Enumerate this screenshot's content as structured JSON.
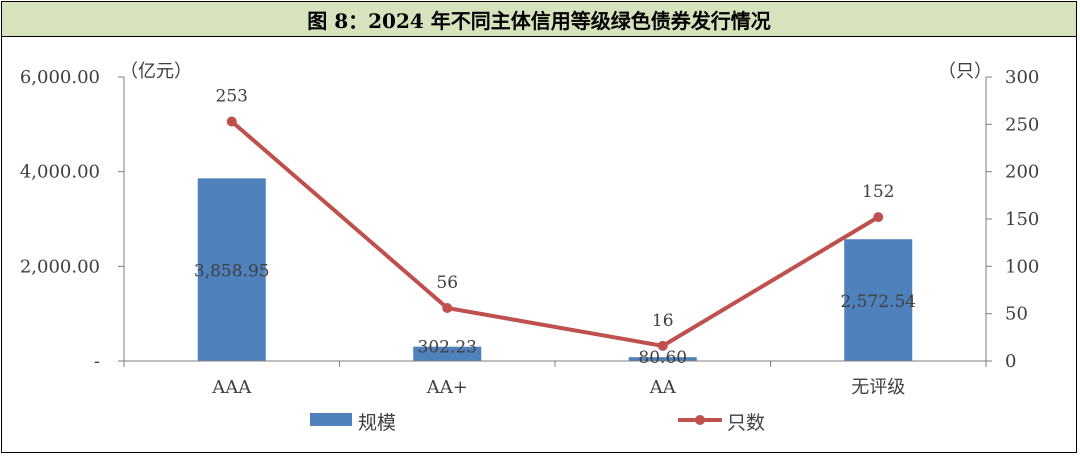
{
  "title": "图 8：2024 年不同主体信用等级绿色债券发行情况",
  "chart_data": {
    "type": "bar+line",
    "categories": [
      "AAA",
      "AA+",
      "AA",
      "无评级"
    ],
    "left_axis": {
      "unit": "（亿元）",
      "ylim": [
        0,
        6000
      ],
      "ticks": [
        "-",
        "2,000.00",
        "4,000.00",
        "6,000.00"
      ],
      "tick_values": [
        0,
        2000,
        4000,
        6000
      ]
    },
    "right_axis": {
      "unit": "（只）",
      "ylim": [
        0,
        300
      ],
      "ticks": [
        "0",
        "50",
        "100",
        "150",
        "200",
        "250",
        "300"
      ],
      "tick_values": [
        0,
        50,
        100,
        150,
        200,
        250,
        300
      ]
    },
    "series": [
      {
        "name": "规模",
        "type": "bar",
        "axis": "left",
        "color": "#4f81bd",
        "values": [
          3858.95,
          302.23,
          80.6,
          2572.54
        ],
        "labels": [
          "3,858.95",
          "302.23",
          "80.60",
          "2,572.54"
        ]
      },
      {
        "name": "只数",
        "type": "line",
        "axis": "right",
        "color": "#c0504d",
        "values": [
          253,
          56,
          16,
          152
        ],
        "labels": [
          "253",
          "56",
          "16",
          "152"
        ]
      }
    ],
    "legend": "bottom",
    "grid": false
  }
}
